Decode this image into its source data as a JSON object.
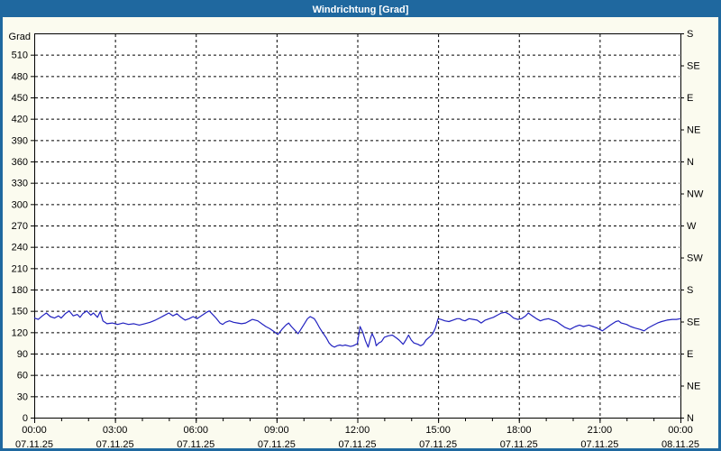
{
  "window": {
    "title": "Windrichtung [Grad]"
  },
  "colors": {
    "titlebar": "#1f689f",
    "window_border": "#1f689f",
    "background": "#fbfbef",
    "plot_background": "#ffffff",
    "grid": "#000000",
    "axis": "#000000",
    "text": "#000000",
    "line": "#2222c0"
  },
  "chart_data": {
    "type": "line",
    "title": "Windrichtung [Grad]",
    "y_axis_left": {
      "label": "Grad",
      "min": 0,
      "max": 540,
      "tick_interval": 30,
      "tick_labels": [
        "0",
        "30",
        "60",
        "90",
        "120",
        "150",
        "180",
        "210",
        "240",
        "270",
        "300",
        "330",
        "360",
        "390",
        "420",
        "450",
        "480",
        "510"
      ]
    },
    "y_axis_right": {
      "tick_interval": 45,
      "ticks": [
        {
          "value": 0,
          "label": "N"
        },
        {
          "value": 45,
          "label": "NE"
        },
        {
          "value": 90,
          "label": "E"
        },
        {
          "value": 135,
          "label": "SE"
        },
        {
          "value": 180,
          "label": "S"
        },
        {
          "value": 225,
          "label": "SW"
        },
        {
          "value": 270,
          "label": "W"
        },
        {
          "value": 315,
          "label": "NW"
        },
        {
          "value": 360,
          "label": "N"
        },
        {
          "value": 405,
          "label": "NE"
        },
        {
          "value": 450,
          "label": "E"
        },
        {
          "value": 495,
          "label": "SE"
        },
        {
          "value": 540,
          "label": "S"
        }
      ]
    },
    "x_axis": {
      "min_hours": 0,
      "max_hours": 24,
      "minor_tick_interval_hours": 1,
      "major_ticks": [
        {
          "hour": 0,
          "time": "00:00",
          "date": "07.11.25"
        },
        {
          "hour": 3,
          "time": "03:00",
          "date": "07.11.25"
        },
        {
          "hour": 6,
          "time": "06:00",
          "date": "07.11.25"
        },
        {
          "hour": 9,
          "time": "09:00",
          "date": "07.11.25"
        },
        {
          "hour": 12,
          "time": "12:00",
          "date": "07.11.25"
        },
        {
          "hour": 15,
          "time": "15:00",
          "date": "07.11.25"
        },
        {
          "hour": 18,
          "time": "18:00",
          "date": "07.11.25"
        },
        {
          "hour": 21,
          "time": "21:00",
          "date": "07.11.25"
        },
        {
          "hour": 24,
          "time": "00:00",
          "date": "08.11.25"
        }
      ]
    },
    "grid": "dashed",
    "legend": "none",
    "series": [
      {
        "name": "Windrichtung",
        "unit": "Grad",
        "color": "#2222c0",
        "points": [
          [
            0.0,
            140
          ],
          [
            0.15,
            138
          ],
          [
            0.3,
            143
          ],
          [
            0.45,
            147
          ],
          [
            0.6,
            142
          ],
          [
            0.75,
            140
          ],
          [
            0.9,
            143
          ],
          [
            1.0,
            140
          ],
          [
            1.15,
            146
          ],
          [
            1.3,
            150
          ],
          [
            1.45,
            143
          ],
          [
            1.6,
            145
          ],
          [
            1.7,
            141
          ],
          [
            1.8,
            146
          ],
          [
            1.95,
            150
          ],
          [
            2.1,
            144
          ],
          [
            2.2,
            147
          ],
          [
            2.35,
            141
          ],
          [
            2.45,
            149
          ],
          [
            2.55,
            136
          ],
          [
            2.7,
            132
          ],
          [
            2.9,
            133
          ],
          [
            3.1,
            131
          ],
          [
            3.3,
            133
          ],
          [
            3.5,
            131
          ],
          [
            3.7,
            132
          ],
          [
            3.9,
            130
          ],
          [
            4.1,
            132
          ],
          [
            4.3,
            134
          ],
          [
            4.5,
            137
          ],
          [
            4.65,
            140
          ],
          [
            4.8,
            143
          ],
          [
            5.0,
            147
          ],
          [
            5.15,
            143
          ],
          [
            5.3,
            146
          ],
          [
            5.45,
            141
          ],
          [
            5.6,
            137
          ],
          [
            5.75,
            139
          ],
          [
            5.9,
            142
          ],
          [
            6.05,
            139
          ],
          [
            6.2,
            143
          ],
          [
            6.4,
            148
          ],
          [
            6.5,
            150
          ],
          [
            6.65,
            144
          ],
          [
            6.75,
            140
          ],
          [
            6.9,
            133
          ],
          [
            7.0,
            131
          ],
          [
            7.1,
            134
          ],
          [
            7.25,
            136
          ],
          [
            7.4,
            134
          ],
          [
            7.55,
            133
          ],
          [
            7.7,
            132
          ],
          [
            7.85,
            133
          ],
          [
            8.0,
            136
          ],
          [
            8.1,
            138
          ],
          [
            8.3,
            136
          ],
          [
            8.45,
            132
          ],
          [
            8.6,
            128
          ],
          [
            8.75,
            125
          ],
          [
            8.9,
            121
          ],
          [
            9.05,
            117
          ],
          [
            9.2,
            124
          ],
          [
            9.35,
            130
          ],
          [
            9.45,
            133
          ],
          [
            9.55,
            128
          ],
          [
            9.7,
            122
          ],
          [
            9.8,
            118
          ],
          [
            9.9,
            124
          ],
          [
            10.0,
            130
          ],
          [
            10.15,
            139
          ],
          [
            10.25,
            142
          ],
          [
            10.4,
            139
          ],
          [
            10.5,
            133
          ],
          [
            10.6,
            126
          ],
          [
            10.7,
            120
          ],
          [
            10.85,
            112
          ],
          [
            10.95,
            105
          ],
          [
            11.05,
            101
          ],
          [
            11.15,
            99
          ],
          [
            11.25,
            101
          ],
          [
            11.35,
            102
          ],
          [
            11.45,
            101
          ],
          [
            11.55,
            102
          ],
          [
            11.65,
            101
          ],
          [
            11.75,
            100
          ],
          [
            11.85,
            101
          ],
          [
            12.0,
            104
          ],
          [
            12.1,
            128
          ],
          [
            12.2,
            120
          ],
          [
            12.3,
            108
          ],
          [
            12.4,
            99
          ],
          [
            12.5,
            113
          ],
          [
            12.55,
            118
          ],
          [
            12.65,
            110
          ],
          [
            12.7,
            101
          ],
          [
            12.8,
            105
          ],
          [
            12.9,
            107
          ],
          [
            13.0,
            113
          ],
          [
            13.15,
            115
          ],
          [
            13.3,
            116
          ],
          [
            13.45,
            112
          ],
          [
            13.55,
            109
          ],
          [
            13.7,
            103
          ],
          [
            13.8,
            109
          ],
          [
            13.9,
            116
          ],
          [
            14.0,
            109
          ],
          [
            14.1,
            105
          ],
          [
            14.25,
            103
          ],
          [
            14.35,
            101
          ],
          [
            14.45,
            103
          ],
          [
            14.55,
            109
          ],
          [
            14.7,
            114
          ],
          [
            14.8,
            118
          ],
          [
            14.9,
            126
          ],
          [
            15.0,
            139
          ],
          [
            15.1,
            138
          ],
          [
            15.25,
            136
          ],
          [
            15.4,
            135
          ],
          [
            15.55,
            137
          ],
          [
            15.7,
            139
          ],
          [
            15.8,
            139
          ],
          [
            15.9,
            137
          ],
          [
            16.0,
            136
          ],
          [
            16.15,
            139
          ],
          [
            16.3,
            138
          ],
          [
            16.45,
            137
          ],
          [
            16.6,
            133
          ],
          [
            16.75,
            137
          ],
          [
            16.9,
            139
          ],
          [
            17.05,
            141
          ],
          [
            17.2,
            144
          ],
          [
            17.35,
            147
          ],
          [
            17.5,
            148
          ],
          [
            17.65,
            145
          ],
          [
            17.8,
            140
          ],
          [
            17.95,
            138
          ],
          [
            18.1,
            139
          ],
          [
            18.25,
            143
          ],
          [
            18.35,
            147
          ],
          [
            18.5,
            143
          ],
          [
            18.65,
            139
          ],
          [
            18.8,
            136
          ],
          [
            18.95,
            138
          ],
          [
            19.1,
            139
          ],
          [
            19.25,
            137
          ],
          [
            19.4,
            135
          ],
          [
            19.55,
            131
          ],
          [
            19.7,
            127
          ],
          [
            19.9,
            124
          ],
          [
            20.1,
            128
          ],
          [
            20.25,
            130
          ],
          [
            20.4,
            128
          ],
          [
            20.6,
            130
          ],
          [
            20.75,
            128
          ],
          [
            20.9,
            126
          ],
          [
            21.1,
            122
          ],
          [
            21.25,
            126
          ],
          [
            21.4,
            130
          ],
          [
            21.6,
            135
          ],
          [
            21.7,
            136
          ],
          [
            21.8,
            133
          ],
          [
            22.0,
            131
          ],
          [
            22.15,
            128
          ],
          [
            22.3,
            126
          ],
          [
            22.5,
            124
          ],
          [
            22.65,
            122
          ],
          [
            22.8,
            126
          ],
          [
            23.0,
            130
          ],
          [
            23.15,
            133
          ],
          [
            23.3,
            135
          ],
          [
            23.5,
            137
          ],
          [
            23.7,
            138
          ],
          [
            23.85,
            138
          ],
          [
            24.0,
            139
          ]
        ]
      }
    ]
  }
}
